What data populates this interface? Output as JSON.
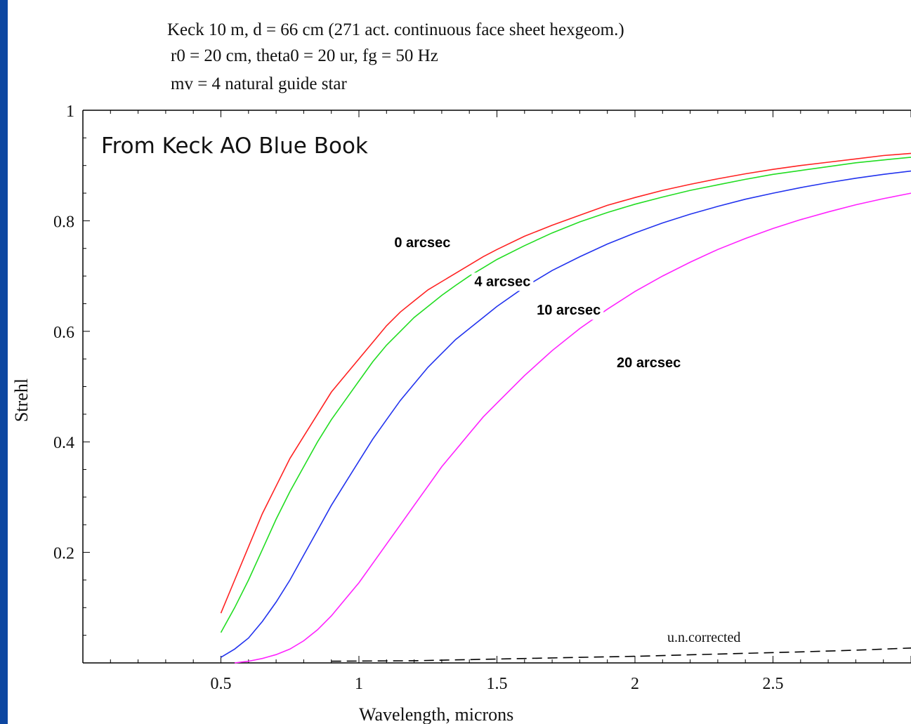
{
  "page": {
    "frame_color": "#0d47a1",
    "background": "#ffffff"
  },
  "header": {
    "line1": "Keck 10 m, d = 66 cm (271 act. continuous face sheet hexgeom.)",
    "line2": "r0 = 20 cm, theta0 = 20 ur, fg = 50 Hz",
    "line3": "mv = 4 natural guide star"
  },
  "annotation": "From Keck AO Blue Book",
  "chart_data": {
    "type": "line",
    "xlabel": "Wavelength, microns",
    "ylabel": "Strehl",
    "xlim": [
      0,
      3.0
    ],
    "ylim": [
      0,
      1
    ],
    "x_ticks": [
      {
        "value": 0.5,
        "label": "0.5"
      },
      {
        "value": 1.0,
        "label": "1"
      },
      {
        "value": 1.5,
        "label": "1.5"
      },
      {
        "value": 2.0,
        "label": "2"
      },
      {
        "value": 2.5,
        "label": "2.5"
      }
    ],
    "y_ticks": [
      {
        "value": 0.2,
        "label": "0.2"
      },
      {
        "value": 0.4,
        "label": "0.4"
      },
      {
        "value": 0.6,
        "label": "0.6"
      },
      {
        "value": 0.8,
        "label": "0.8"
      },
      {
        "value": 1.0,
        "label": "1"
      }
    ],
    "grid": false,
    "series": [
      {
        "name": "0 arcsec",
        "color": "#ff2222",
        "dash": false,
        "label_at": [
          1.23,
          0.752
        ],
        "points": [
          [
            0.5,
            0.09
          ],
          [
            0.55,
            0.15
          ],
          [
            0.6,
            0.21
          ],
          [
            0.65,
            0.27
          ],
          [
            0.7,
            0.32
          ],
          [
            0.75,
            0.37
          ],
          [
            0.8,
            0.41
          ],
          [
            0.85,
            0.45
          ],
          [
            0.9,
            0.49
          ],
          [
            0.95,
            0.52
          ],
          [
            1.0,
            0.55
          ],
          [
            1.05,
            0.58
          ],
          [
            1.1,
            0.61
          ],
          [
            1.15,
            0.635
          ],
          [
            1.2,
            0.655
          ],
          [
            1.25,
            0.675
          ],
          [
            1.3,
            0.69
          ],
          [
            1.35,
            0.705
          ],
          [
            1.4,
            0.72
          ],
          [
            1.45,
            0.735
          ],
          [
            1.5,
            0.748
          ],
          [
            1.6,
            0.772
          ],
          [
            1.7,
            0.792
          ],
          [
            1.8,
            0.81
          ],
          [
            1.9,
            0.828
          ],
          [
            2.0,
            0.842
          ],
          [
            2.1,
            0.855
          ],
          [
            2.2,
            0.866
          ],
          [
            2.3,
            0.876
          ],
          [
            2.4,
            0.885
          ],
          [
            2.5,
            0.893
          ],
          [
            2.6,
            0.9
          ],
          [
            2.7,
            0.906
          ],
          [
            2.8,
            0.912
          ],
          [
            2.9,
            0.918
          ],
          [
            3.0,
            0.922
          ]
        ]
      },
      {
        "name": "4 arcsec",
        "color": "#22dd22",
        "dash": false,
        "label_at": [
          1.52,
          0.682
        ],
        "points": [
          [
            0.5,
            0.055
          ],
          [
            0.55,
            0.1
          ],
          [
            0.6,
            0.15
          ],
          [
            0.65,
            0.205
          ],
          [
            0.7,
            0.26
          ],
          [
            0.75,
            0.31
          ],
          [
            0.8,
            0.355
          ],
          [
            0.85,
            0.4
          ],
          [
            0.9,
            0.44
          ],
          [
            0.95,
            0.475
          ],
          [
            1.0,
            0.51
          ],
          [
            1.05,
            0.545
          ],
          [
            1.1,
            0.575
          ],
          [
            1.15,
            0.6
          ],
          [
            1.2,
            0.625
          ],
          [
            1.25,
            0.645
          ],
          [
            1.3,
            0.665
          ],
          [
            1.35,
            0.683
          ],
          [
            1.4,
            0.7
          ],
          [
            1.45,
            0.715
          ],
          [
            1.5,
            0.73
          ],
          [
            1.6,
            0.755
          ],
          [
            1.7,
            0.778
          ],
          [
            1.8,
            0.798
          ],
          [
            1.9,
            0.815
          ],
          [
            2.0,
            0.83
          ],
          [
            2.1,
            0.843
          ],
          [
            2.2,
            0.855
          ],
          [
            2.3,
            0.865
          ],
          [
            2.4,
            0.875
          ],
          [
            2.5,
            0.884
          ],
          [
            2.6,
            0.891
          ],
          [
            2.7,
            0.898
          ],
          [
            2.8,
            0.905
          ],
          [
            2.9,
            0.91
          ],
          [
            3.0,
            0.915
          ]
        ]
      },
      {
        "name": "10 arcsec",
        "color": "#2233ee",
        "dash": false,
        "label_at": [
          1.76,
          0.63
        ],
        "points": [
          [
            0.5,
            0.01
          ],
          [
            0.55,
            0.025
          ],
          [
            0.6,
            0.045
          ],
          [
            0.65,
            0.075
          ],
          [
            0.7,
            0.11
          ],
          [
            0.75,
            0.15
          ],
          [
            0.8,
            0.195
          ],
          [
            0.85,
            0.24
          ],
          [
            0.9,
            0.285
          ],
          [
            0.95,
            0.325
          ],
          [
            1.0,
            0.365
          ],
          [
            1.05,
            0.405
          ],
          [
            1.1,
            0.44
          ],
          [
            1.15,
            0.475
          ],
          [
            1.2,
            0.505
          ],
          [
            1.25,
            0.535
          ],
          [
            1.3,
            0.56
          ],
          [
            1.35,
            0.585
          ],
          [
            1.4,
            0.605
          ],
          [
            1.45,
            0.625
          ],
          [
            1.5,
            0.645
          ],
          [
            1.6,
            0.68
          ],
          [
            1.7,
            0.71
          ],
          [
            1.8,
            0.735
          ],
          [
            1.9,
            0.758
          ],
          [
            2.0,
            0.778
          ],
          [
            2.1,
            0.796
          ],
          [
            2.2,
            0.812
          ],
          [
            2.3,
            0.826
          ],
          [
            2.4,
            0.839
          ],
          [
            2.5,
            0.85
          ],
          [
            2.6,
            0.86
          ],
          [
            2.7,
            0.869
          ],
          [
            2.8,
            0.877
          ],
          [
            2.9,
            0.884
          ],
          [
            3.0,
            0.89
          ]
        ]
      },
      {
        "name": "20 arcsec",
        "color": "#ff22ff",
        "dash": false,
        "label_at": [
          2.05,
          0.535
        ],
        "points": [
          [
            0.55,
            0.0
          ],
          [
            0.6,
            0.003
          ],
          [
            0.65,
            0.008
          ],
          [
            0.7,
            0.015
          ],
          [
            0.75,
            0.025
          ],
          [
            0.8,
            0.04
          ],
          [
            0.85,
            0.06
          ],
          [
            0.9,
            0.085
          ],
          [
            0.95,
            0.115
          ],
          [
            1.0,
            0.145
          ],
          [
            1.05,
            0.18
          ],
          [
            1.1,
            0.215
          ],
          [
            1.15,
            0.25
          ],
          [
            1.2,
            0.285
          ],
          [
            1.25,
            0.32
          ],
          [
            1.3,
            0.355
          ],
          [
            1.35,
            0.385
          ],
          [
            1.4,
            0.415
          ],
          [
            1.45,
            0.445
          ],
          [
            1.5,
            0.47
          ],
          [
            1.6,
            0.52
          ],
          [
            1.7,
            0.565
          ],
          [
            1.8,
            0.605
          ],
          [
            1.9,
            0.64
          ],
          [
            2.0,
            0.672
          ],
          [
            2.1,
            0.7
          ],
          [
            2.2,
            0.725
          ],
          [
            2.3,
            0.748
          ],
          [
            2.4,
            0.768
          ],
          [
            2.5,
            0.786
          ],
          [
            2.6,
            0.802
          ],
          [
            2.7,
            0.816
          ],
          [
            2.8,
            0.829
          ],
          [
            2.9,
            0.84
          ],
          [
            3.0,
            0.85
          ]
        ]
      },
      {
        "name": "uncorrected",
        "color": "#000000",
        "dash": true,
        "label_at": [
          2.25,
          0.038
        ],
        "points": [
          [
            0.9,
            0.003
          ],
          [
            1.2,
            0.004
          ],
          [
            1.5,
            0.007
          ],
          [
            1.8,
            0.01
          ],
          [
            2.0,
            0.012
          ],
          [
            2.3,
            0.016
          ],
          [
            2.6,
            0.02
          ],
          [
            2.8,
            0.023
          ],
          [
            3.0,
            0.027
          ]
        ]
      }
    ],
    "series_labels": {
      "0 arcsec": "0 arcsec",
      "4 arcsec": "4 arcsec",
      "10 arcsec": "10 arcsec",
      "20 arcsec": "20 arcsec",
      "uncorrected": "u.n.corrected"
    }
  }
}
